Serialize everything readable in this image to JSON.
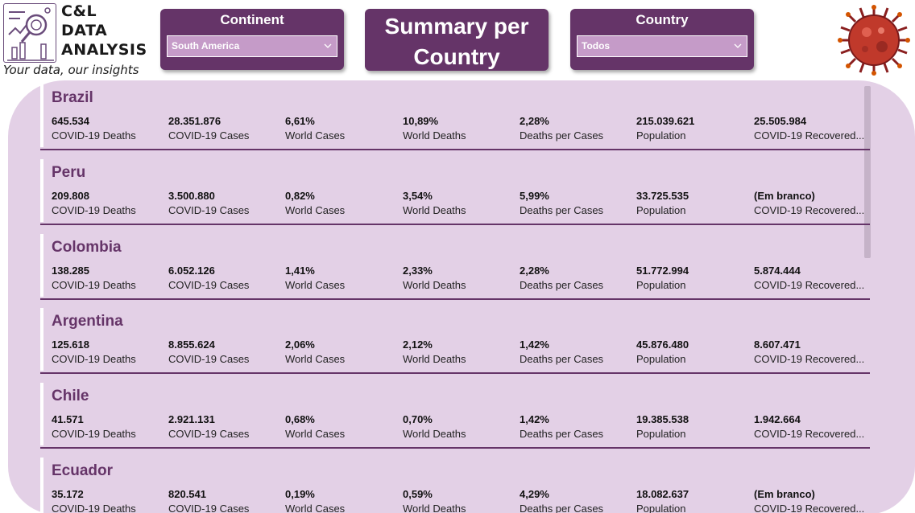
{
  "logo": {
    "line1": "C&L",
    "line2": "DATA",
    "line3": "ANALYSIS",
    "tagline": "Your data, our insights"
  },
  "continent_slicer": {
    "title": "Continent",
    "selected": "South America"
  },
  "page_title": {
    "line1": "Summary per",
    "line2": "Country"
  },
  "country_slicer": {
    "title": "Country",
    "selected": "Todos"
  },
  "metric_labels": [
    "COVID-19 Deaths",
    "COVID-19 Cases",
    "World Cases",
    "World Deaths",
    "Deaths per Cases",
    "Population",
    "COVID-19 Recovered..."
  ],
  "countries": [
    {
      "name": "Brazil",
      "values": [
        "645.534",
        "28.351.876",
        "6,61%",
        "10,89%",
        "2,28%",
        "215.039.621",
        "25.505.984"
      ]
    },
    {
      "name": "Peru",
      "values": [
        "209.808",
        "3.500.880",
        "0,82%",
        "3,54%",
        "5,99%",
        "33.725.535",
        "(Em branco)"
      ]
    },
    {
      "name": "Colombia",
      "values": [
        "138.285",
        "6.052.126",
        "1,41%",
        "2,33%",
        "2,28%",
        "51.772.994",
        "5.874.444"
      ]
    },
    {
      "name": "Argentina",
      "values": [
        "125.618",
        "8.855.624",
        "2,06%",
        "2,12%",
        "1,42%",
        "45.876.480",
        "8.607.471"
      ]
    },
    {
      "name": "Chile",
      "values": [
        "41.571",
        "2.921.131",
        "0,68%",
        "0,70%",
        "1,42%",
        "19.385.538",
        "1.942.664"
      ]
    },
    {
      "name": "Ecuador",
      "values": [
        "35.172",
        "820.541",
        "0,19%",
        "0,59%",
        "4,29%",
        "18.082.637",
        "(Em branco)"
      ]
    }
  ],
  "colors": {
    "brand_purple": "#653468",
    "panel_bg": "#e3d0e6",
    "select_bg": "#c59bc8"
  }
}
